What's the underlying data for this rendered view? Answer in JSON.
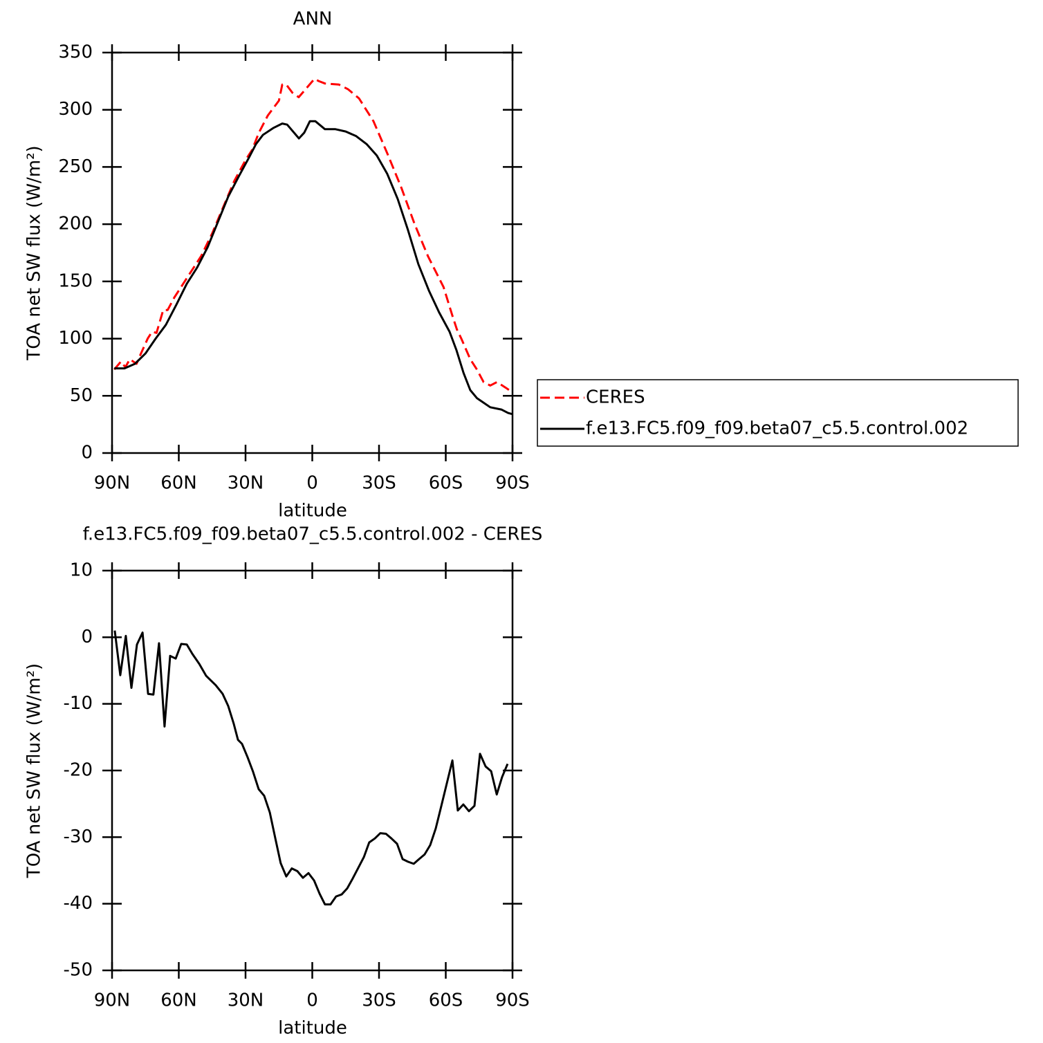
{
  "chart_data": [
    {
      "type": "line",
      "title": "ANN",
      "xlabel": "latitude",
      "ylabel": "TOA net SW flux (W/m²)",
      "xlim": [
        90,
        -90
      ],
      "ylim": [
        0,
        350
      ],
      "xticks": [
        {
          "value": 90,
          "label": "90N"
        },
        {
          "value": 60,
          "label": "60N"
        },
        {
          "value": 30,
          "label": "30N"
        },
        0,
        {
          "value": -30,
          "label": "30S"
        },
        {
          "value": -60,
          "label": "60S"
        },
        {
          "value": -90,
          "label": "90S"
        }
      ],
      "yticks": [
        0,
        50,
        100,
        150,
        200,
        250,
        300,
        350
      ],
      "legend": "right",
      "series": [
        {
          "name": "CERES",
          "color": "#ff0000",
          "linestyle": "dashed",
          "x": [
            89,
            86,
            84,
            82,
            79,
            77,
            74,
            72,
            70,
            67,
            65,
            62,
            58,
            54,
            50,
            45,
            40,
            35,
            30,
            27,
            24,
            20,
            15,
            13.5,
            11.7,
            9,
            6.1,
            3,
            -1,
            -3,
            -5.7,
            -12,
            -16,
            -21,
            -27.5,
            -33.7,
            -40,
            -46,
            -52,
            -59,
            -63,
            -65,
            -67,
            -71,
            -74,
            -77,
            -80,
            -83,
            -87,
            -90
          ],
          "values": [
            73,
            80,
            75,
            82,
            78,
            87,
            100,
            106,
            105,
            125,
            125,
            136,
            148,
            160,
            172,
            192,
            215,
            238,
            256,
            265,
            280,
            295,
            308,
            322,
            322,
            315,
            311,
            318,
            327,
            325,
            323,
            322,
            318,
            310,
            290,
            262,
            232,
            200,
            172,
            145,
            120,
            108,
            100,
            82,
            73,
            62,
            59,
            62,
            57,
            53
          ]
        },
        {
          "name": "f.e13.FC5.f09_f09.beta07_c5.5.control.002",
          "color": "#000000",
          "linestyle": "solid",
          "x": [
            89,
            84.4,
            79.7,
            75,
            70.4,
            65.8,
            61,
            56.4,
            51.8,
            47,
            42.4,
            37.8,
            33,
            28.5,
            25.3,
            22.2,
            17.6,
            13.5,
            11.3,
            6,
            3.6,
            1.1,
            -1.4,
            -5.7,
            -10.4,
            -15,
            -19.7,
            -24.4,
            -29,
            -33.7,
            -38.4,
            -43,
            -47.7,
            -52.4,
            -57,
            -61.7,
            -64.8,
            -68,
            -71,
            -74,
            -77,
            -80,
            -85,
            -88,
            -90
          ],
          "values": [
            74,
            74,
            78,
            87,
            100,
            112,
            130,
            148,
            162,
            180,
            202,
            224,
            242,
            258,
            270,
            278,
            284,
            288,
            287,
            275,
            280,
            290,
            290,
            283,
            283,
            281,
            277,
            270,
            260,
            244,
            222,
            195,
            165,
            142,
            123,
            106,
            90,
            70,
            55,
            48,
            44,
            40,
            38,
            35,
            34
          ]
        }
      ]
    },
    {
      "type": "line",
      "title": "f.e13.FC5.f09_f09.beta07_c5.5.control.002 - CERES",
      "xlabel": "latitude",
      "ylabel": "TOA net SW flux (W/m²)",
      "xlim": [
        90,
        -90
      ],
      "ylim": [
        -50,
        10
      ],
      "xticks": [
        {
          "value": 90,
          "label": "90N"
        },
        {
          "value": 60,
          "label": "60N"
        },
        {
          "value": 30,
          "label": "30N"
        },
        0,
        {
          "value": -30,
          "label": "30S"
        },
        {
          "value": -60,
          "label": "60S"
        },
        {
          "value": -90,
          "label": "90S"
        }
      ],
      "yticks": [
        -50,
        -40,
        -30,
        -20,
        -10,
        0,
        10
      ],
      "series": [
        {
          "color": "#000000",
          "linestyle": "solid",
          "x": [
            88.8,
            86.3,
            83.8,
            81.3,
            78.8,
            76.3,
            73.8,
            71.4,
            68.9,
            66.4,
            63.9,
            61.4,
            58.9,
            56.4,
            53.9,
            50.8,
            47.7,
            43.4,
            40.3,
            37.8,
            35.3,
            33.4,
            31.6,
            29.1,
            26.6,
            24.1,
            21.6,
            19.1,
            16.6,
            14.2,
            11.7,
            9.2,
            6.7,
            4.2,
            1.7,
            -0.8,
            -3.3,
            -5.7,
            -8.2,
            -10.7,
            -13.2,
            -15.7,
            -18.2,
            -20.7,
            -23.2,
            -25.6,
            -28.1,
            -30.6,
            -33.1,
            -35.6,
            -38.1,
            -40.6,
            -43.1,
            -45.6,
            -48,
            -50.5,
            -53,
            -55.5,
            -58,
            -60.5,
            -63,
            -65.4,
            -67.9,
            -70.4,
            -72.9,
            -75.4,
            -77.9,
            -80.4,
            -82.9,
            -85.3,
            -87.8
          ],
          "values": [
            1,
            -5.7,
            0.2,
            -7.6,
            -1.1,
            0.7,
            -8.5,
            -8.6,
            -0.9,
            -13.4,
            -2.8,
            -3.2,
            -1,
            -1.1,
            -2.5,
            -4,
            -5.8,
            -7.2,
            -8.5,
            -10.3,
            -13,
            -15.4,
            -16,
            -18,
            -20.2,
            -22.8,
            -23.8,
            -26.3,
            -30.2,
            -33.9,
            -35.9,
            -34.7,
            -35.1,
            -36.1,
            -35.4,
            -36.5,
            -38.5,
            -40.1,
            -40.1,
            -38.9,
            -38.6,
            -37.7,
            -36.2,
            -34.6,
            -33,
            -30.8,
            -30.2,
            -29.4,
            -29.5,
            -30.2,
            -31,
            -33.3,
            -33.7,
            -34,
            -33.3,
            -32.6,
            -31.2,
            -28.7,
            -25.3,
            -21.9,
            -18.5,
            -26,
            -25.1,
            -26.1,
            -25.3,
            -17.5,
            -19.4,
            -20.1,
            -23.6,
            -21,
            -19
          ]
        }
      ]
    }
  ]
}
